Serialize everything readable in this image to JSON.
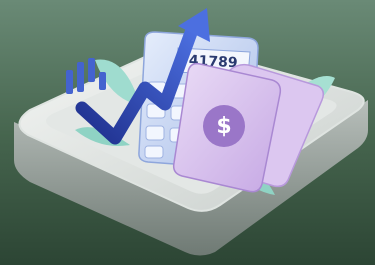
{
  "calculator": {
    "display": "41789"
  },
  "banknote": {
    "symbol": "$"
  }
}
